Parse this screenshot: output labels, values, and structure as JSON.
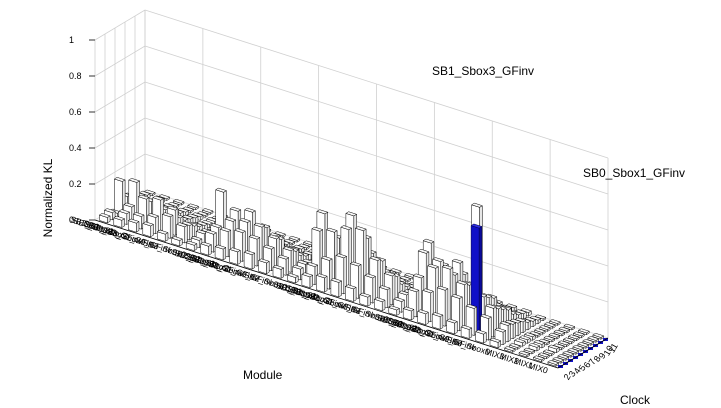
{
  "chart_data": {
    "type": "bar3d",
    "title": "",
    "xlabel": "Clock",
    "ylabel": "Module",
    "zlabel": "Normalized KL",
    "zlim": [
      0,
      1
    ],
    "z_ticks": [
      "0",
      "0.2",
      "0.4",
      "0.6",
      "0.8",
      "1"
    ],
    "grid": true,
    "clock_ticks": [
      "2",
      "3",
      "4",
      "5",
      "6",
      "7",
      "8",
      "9",
      "10",
      "11"
    ],
    "modules": [
      "SB3",
      "SB3_Sbox3",
      "SB3_Sbox2",
      "SB3_Sbox2_GFinv",
      "SB3_Sbox1_GFinv",
      "SB3_Sbox0_GFinv",
      "SB3_Sbox0",
      "SB2",
      "SB2_Sbox3",
      "SB2_Sbox2",
      "SB2_Sbox2_GFinv",
      "SB2_Sbox1_GFinv",
      "SB2_Sbox0_GFinv",
      "SB2_Sbox0",
      "SB1",
      "SB1_Sbox3",
      "SB1_Sbox2",
      "SB1_Sbox2_GFinv",
      "SB1_Sbox1_GFinv",
      "SB1_Sbox0_GFinv",
      "SB1_Sbox0",
      "SB0",
      "SB0_Sbox3",
      "SB0_Sbox2",
      "SB0_Sbox2_GFinv",
      "SB0_Sbox1_GFinv",
      "SB0_Sbox0_GFinv",
      "SB0_Sbox0",
      "MIX3",
      "MIX2",
      "MIX1",
      "MIX0"
    ],
    "values": [
      [
        0.03,
        0.04,
        0.02,
        0.18,
        0.08,
        0.06,
        0.04,
        0.03,
        0.02,
        0.01
      ],
      [
        0.04,
        0.06,
        0.08,
        0.2,
        0.07,
        0.05,
        0.03,
        0.02,
        0.02,
        0.01
      ],
      [
        0.05,
        0.07,
        0.15,
        0.12,
        0.05,
        0.04,
        0.03,
        0.02,
        0.01,
        0.01
      ],
      [
        0.06,
        0.09,
        0.17,
        0.1,
        0.06,
        0.05,
        0.03,
        0.02,
        0.01,
        0.01
      ],
      [
        0.04,
        0.12,
        0.14,
        0.08,
        0.05,
        0.04,
        0.03,
        0.02,
        0.01,
        0.01
      ],
      [
        0.03,
        0.09,
        0.08,
        0.06,
        0.04,
        0.03,
        0.02,
        0.02,
        0.01,
        0.01
      ],
      [
        0.03,
        0.04,
        0.06,
        0.05,
        0.03,
        0.03,
        0.02,
        0.01,
        0.01,
        0.01
      ],
      [
        0.05,
        0.1,
        0.12,
        0.3,
        0.12,
        0.08,
        0.04,
        0.03,
        0.02,
        0.01
      ],
      [
        0.06,
        0.14,
        0.18,
        0.22,
        0.1,
        0.07,
        0.04,
        0.03,
        0.02,
        0.01
      ],
      [
        0.07,
        0.16,
        0.2,
        0.24,
        0.12,
        0.06,
        0.03,
        0.02,
        0.02,
        0.01
      ],
      [
        0.08,
        0.15,
        0.2,
        0.18,
        0.09,
        0.05,
        0.03,
        0.02,
        0.01,
        0.01
      ],
      [
        0.06,
        0.12,
        0.16,
        0.14,
        0.07,
        0.05,
        0.03,
        0.02,
        0.01,
        0.01
      ],
      [
        0.05,
        0.09,
        0.12,
        0.1,
        0.06,
        0.04,
        0.03,
        0.02,
        0.01,
        0.01
      ],
      [
        0.03,
        0.06,
        0.07,
        0.06,
        0.04,
        0.03,
        0.02,
        0.01,
        0.01,
        0.01
      ],
      [
        0.06,
        0.1,
        0.28,
        0.36,
        0.16,
        0.08,
        0.04,
        0.03,
        0.02,
        0.01
      ],
      [
        0.08,
        0.16,
        0.3,
        0.25,
        0.12,
        0.06,
        0.03,
        0.03,
        0.02,
        0.01
      ],
      [
        0.08,
        0.2,
        0.34,
        0.4,
        0.22,
        0.08,
        0.04,
        0.03,
        0.02,
        0.01
      ],
      [
        0.07,
        0.18,
        0.36,
        0.3,
        0.2,
        0.07,
        0.03,
        0.02,
        0.02,
        0.01
      ],
      [
        0.05,
        0.14,
        0.22,
        0.2,
        0.12,
        0.05,
        0.03,
        0.02,
        0.01,
        0.01
      ],
      [
        0.05,
        0.1,
        0.16,
        0.14,
        0.08,
        0.05,
        0.03,
        0.02,
        0.01,
        0.01
      ],
      [
        0.03,
        0.06,
        0.08,
        0.07,
        0.05,
        0.03,
        0.02,
        0.01,
        0.01,
        0.01
      ],
      [
        0.05,
        0.14,
        0.2,
        0.32,
        0.36,
        0.16,
        0.06,
        0.04,
        0.03,
        0.02
      ],
      [
        0.06,
        0.16,
        0.28,
        0.3,
        0.26,
        0.18,
        0.07,
        0.05,
        0.03,
        0.02
      ],
      [
        0.07,
        0.2,
        0.3,
        0.25,
        0.3,
        0.22,
        0.08,
        0.06,
        0.03,
        0.02
      ],
      [
        0.06,
        0.18,
        0.24,
        0.22,
        0.2,
        0.62,
        0.1,
        0.07,
        0.04,
        0.02
      ],
      [
        0.05,
        0.15,
        0.2,
        0.18,
        0.16,
        0.14,
        0.08,
        0.05,
        0.03,
        0.02
      ],
      [
        0.05,
        0.12,
        0.16,
        0.14,
        0.12,
        0.1,
        0.06,
        0.04,
        0.03,
        0.02
      ],
      [
        0.03,
        0.07,
        0.09,
        0.08,
        0.07,
        0.06,
        0.04,
        0.03,
        0.02,
        0.01
      ],
      [
        0.01,
        0.01,
        0.02,
        0.02,
        0.02,
        0.01,
        0.01,
        0.01,
        0.01,
        0.01
      ],
      [
        0.01,
        0.01,
        0.02,
        0.02,
        0.01,
        0.01,
        0.01,
        0.01,
        0.01,
        0.01
      ],
      [
        0.01,
        0.01,
        0.01,
        0.02,
        0.01,
        0.01,
        0.01,
        0.01,
        0.01,
        0.01
      ],
      [
        0.01,
        0.01,
        0.01,
        0.01,
        0.01,
        0.01,
        0.01,
        0.01,
        0.01,
        0.01
      ]
    ],
    "highlighted": [
      {
        "label": "SB1_Sbox3_GFinv",
        "value": 0.74,
        "color": "#1010c8"
      },
      {
        "label": "SB0_Sbox1_GFinv",
        "value": 0.58,
        "color": "#1010c8"
      }
    ],
    "baseline_marker_color": "#1010c8"
  }
}
